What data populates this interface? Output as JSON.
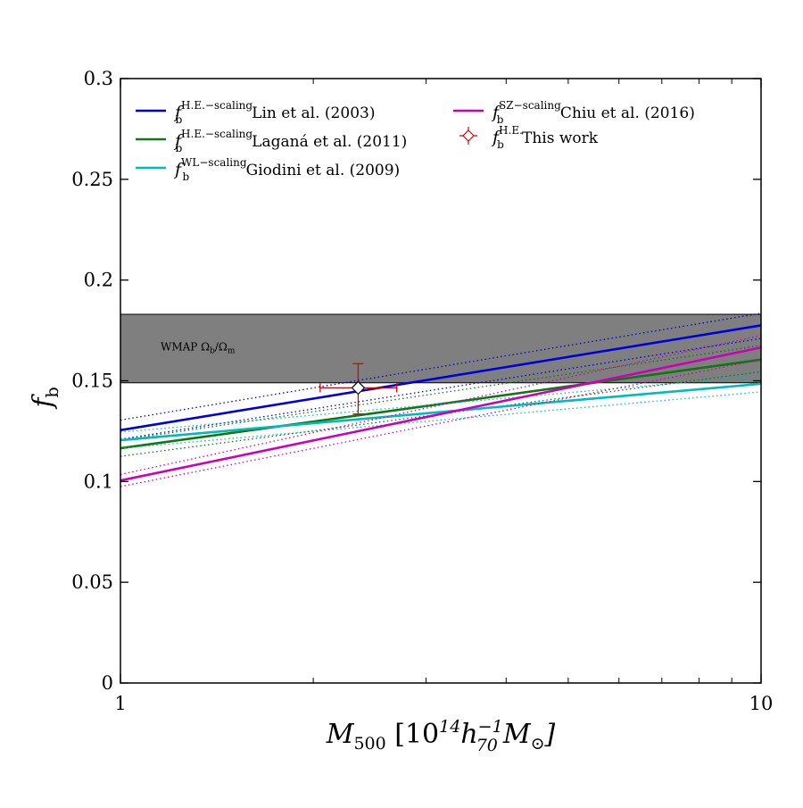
{
  "chart_data": {
    "type": "line",
    "xscale": "log",
    "xlim": [
      1,
      10
    ],
    "ylim": [
      0,
      0.3
    ],
    "xlabel": {
      "main": "M",
      "sub": "500",
      "unit_pre": "[10",
      "unit_exp": "14",
      "h": "h",
      "h_sub": "70",
      "h_exp": "−1",
      "m": "M",
      "m_sub": "⊙",
      "unit_post": "]"
    },
    "ylabel": {
      "main": "f",
      "sub": "b"
    },
    "x_ticks": [
      {
        "value": 1,
        "label": "1"
      },
      {
        "value": 10,
        "label": "10"
      }
    ],
    "x_minor_ticks": [
      2,
      3,
      4,
      5,
      6,
      7,
      8,
      9
    ],
    "y_ticks": [
      {
        "value": 0,
        "label": "0"
      },
      {
        "value": 0.05,
        "label": "0.05"
      },
      {
        "value": 0.1,
        "label": "0.1"
      },
      {
        "value": 0.15,
        "label": "0.15"
      },
      {
        "value": 0.2,
        "label": "0.2"
      },
      {
        "value": 0.25,
        "label": "0.25"
      },
      {
        "value": 0.3,
        "label": "0.3"
      }
    ],
    "band": {
      "label": "WMAP Ω",
      "label_sub1": "b",
      "label_mid": "/Ω",
      "label_sub2": "m",
      "ymin": 0.149,
      "ymax": 0.183,
      "color": "#7f7f7f"
    },
    "series": [
      {
        "name": "Lin et al. (2003)",
        "superscript": "H.E.−scaling",
        "color": "#0000dd",
        "x": [
          1,
          10
        ],
        "y": [
          0.1255,
          0.1775
        ],
        "upper": [
          0.1305,
          0.1835
        ],
        "lower": [
          0.121,
          0.171
        ]
      },
      {
        "name": "Laganá et al. (2011)",
        "superscript": "H.E.−scaling",
        "color": "#117711",
        "x": [
          1,
          10
        ],
        "y": [
          0.1165,
          0.1605
        ],
        "upper": [
          0.1205,
          0.1675
        ],
        "lower": [
          0.1125,
          0.1545
        ]
      },
      {
        "name": "Giodini et al. (2009)",
        "superscript": "WL−scaling",
        "color": "#00bbbb",
        "x": [
          1,
          10
        ],
        "y": [
          0.1205,
          0.1485
        ],
        "upper": [
          0.1245,
          0.1525
        ],
        "lower": [
          0.1165,
          0.1445
        ]
      },
      {
        "name": "Chiu et al. (2016)",
        "superscript": "SZ−scaling",
        "color": "#cc00bb",
        "x": [
          1,
          10
        ],
        "y": [
          0.1005,
          0.1665
        ],
        "upper": [
          0.1035,
          0.1725
        ],
        "lower": [
          0.0975,
          0.1605
        ]
      }
    ],
    "point": {
      "name": "This work",
      "superscript": "H.E.",
      "color": "#dd0000",
      "x": 2.35,
      "y": 0.1465,
      "xerr_low": 2.05,
      "xerr_high": 2.7,
      "yerr_low": 0.1335,
      "yerr_high": 0.1585
    },
    "legend": {
      "placement": "top",
      "f_symbol": "f",
      "f_sub": "b"
    }
  }
}
